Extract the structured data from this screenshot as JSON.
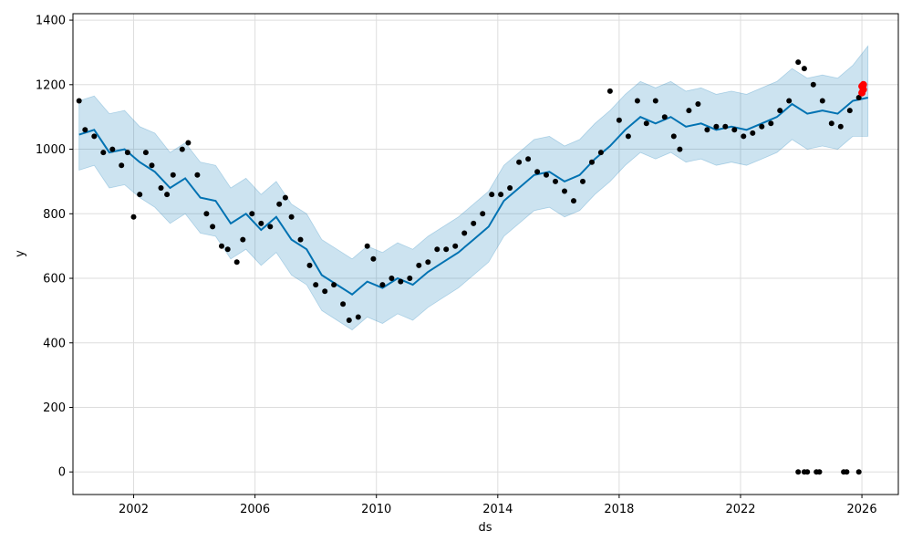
{
  "colors": {
    "observed": "#000000",
    "forecast_line": "#0072B2",
    "uncertainty_band": "#0072B2",
    "highlight": "#ff0000",
    "grid": "#dddddd"
  },
  "chart_data": {
    "type": "line",
    "title": "",
    "xlabel": "ds",
    "ylabel": "y",
    "xlim": [
      2000.0,
      2027.2
    ],
    "ylim": [
      -70,
      1420
    ],
    "grid": true,
    "x_ticks": [
      2002,
      2006,
      2010,
      2014,
      2018,
      2022,
      2026
    ],
    "x_tick_labels": [
      "2002",
      "2006",
      "2010",
      "2014",
      "2018",
      "2022",
      "2026"
    ],
    "y_ticks": [
      0,
      200,
      400,
      600,
      800,
      1000,
      1200,
      1400
    ],
    "y_tick_labels": [
      "0",
      "200",
      "400",
      "600",
      "800",
      "1000",
      "1200",
      "1400"
    ],
    "series": [
      {
        "role": "observed-points",
        "style": "scatter",
        "color": "#000000",
        "x": [
          2000.2,
          2000.4,
          2000.7,
          2001.0,
          2001.3,
          2001.6,
          2001.8,
          2002.0,
          2002.2,
          2002.4,
          2002.6,
          2002.9,
          2003.1,
          2003.3,
          2003.6,
          2003.8,
          2004.1,
          2004.4,
          2004.6,
          2004.9,
          2005.1,
          2005.4,
          2005.6,
          2005.9,
          2006.2,
          2006.5,
          2006.8,
          2007.0,
          2007.2,
          2007.5,
          2007.8,
          2008.0,
          2008.3,
          2008.6,
          2008.9,
          2009.1,
          2009.4,
          2009.7,
          2009.9,
          2010.2,
          2010.5,
          2010.8,
          2011.1,
          2011.4,
          2011.7,
          2012.0,
          2012.3,
          2012.6,
          2012.9,
          2013.2,
          2013.5,
          2013.8,
          2014.1,
          2014.4,
          2014.7,
          2015.0,
          2015.3,
          2015.6,
          2015.9,
          2016.2,
          2016.5,
          2016.8,
          2017.1,
          2017.4,
          2017.7,
          2018.0,
          2018.3,
          2018.6,
          2018.9,
          2019.2,
          2019.5,
          2019.8,
          2020.0,
          2020.3,
          2020.6,
          2020.9,
          2021.2,
          2021.5,
          2021.8,
          2022.1,
          2022.4,
          2022.7,
          2023.0,
          2023.3,
          2023.6,
          2023.9,
          2024.1,
          2024.4,
          2024.7,
          2025.0,
          2025.3,
          2025.6,
          2025.9
        ],
        "y": [
          1150,
          1060,
          1040,
          990,
          1000,
          950,
          990,
          790,
          860,
          990,
          950,
          880,
          860,
          920,
          1000,
          1020,
          920,
          800,
          760,
          700,
          690,
          650,
          720,
          800,
          770,
          760,
          830,
          850,
          790,
          720,
          640,
          580,
          560,
          580,
          520,
          470,
          480,
          700,
          660,
          580,
          600,
          590,
          600,
          640,
          650,
          690,
          690,
          700,
          740,
          770,
          800,
          860,
          860,
          880,
          960,
          970,
          930,
          920,
          900,
          870,
          840,
          900,
          960,
          990,
          1180,
          1090,
          1040,
          1150,
          1080,
          1150,
          1100,
          1040,
          1000,
          1120,
          1140,
          1060,
          1070,
          1070,
          1060,
          1040,
          1050,
          1070,
          1080,
          1120,
          1150,
          1270,
          1250,
          1200,
          1150,
          1080,
          1070,
          1120,
          1160
        ]
      },
      {
        "role": "outlier-zero-points",
        "style": "scatter",
        "color": "#000000",
        "x": [
          2023.9,
          2024.1,
          2024.2,
          2024.5,
          2024.6,
          2025.4,
          2025.5,
          2025.9
        ],
        "y": [
          0,
          0,
          0,
          0,
          0,
          0,
          0,
          0
        ]
      },
      {
        "role": "forecast",
        "style": "line",
        "color": "#0072B2",
        "x": [
          2000.2,
          2000.7,
          2001.2,
          2001.7,
          2002.2,
          2002.7,
          2003.2,
          2003.7,
          2004.2,
          2004.7,
          2005.2,
          2005.7,
          2006.2,
          2006.7,
          2007.2,
          2007.7,
          2008.2,
          2008.7,
          2009.2,
          2009.7,
          2010.2,
          2010.7,
          2011.2,
          2011.7,
          2012.2,
          2012.7,
          2013.2,
          2013.7,
          2014.2,
          2014.7,
          2015.2,
          2015.7,
          2016.2,
          2016.7,
          2017.2,
          2017.7,
          2018.2,
          2018.7,
          2019.2,
          2019.7,
          2020.2,
          2020.7,
          2021.2,
          2021.7,
          2022.2,
          2022.7,
          2023.2,
          2023.7,
          2024.2,
          2024.7,
          2025.2,
          2025.7,
          2026.2
        ],
        "y": [
          1045,
          1060,
          990,
          1000,
          960,
          930,
          880,
          910,
          850,
          840,
          770,
          800,
          750,
          790,
          720,
          690,
          610,
          580,
          550,
          590,
          570,
          600,
          580,
          620,
          650,
          680,
          720,
          760,
          840,
          880,
          920,
          930,
          900,
          920,
          970,
          1010,
          1060,
          1100,
          1080,
          1100,
          1070,
          1080,
          1060,
          1070,
          1060,
          1080,
          1100,
          1140,
          1110,
          1120,
          1110,
          1150,
          1160
        ]
      },
      {
        "role": "uncertainty-upper",
        "style": "band-edge",
        "color": "#0072B2",
        "x": [
          2000.2,
          2000.7,
          2001.2,
          2001.7,
          2002.2,
          2002.7,
          2003.2,
          2003.7,
          2004.2,
          2004.7,
          2005.2,
          2005.7,
          2006.2,
          2006.7,
          2007.2,
          2007.7,
          2008.2,
          2008.7,
          2009.2,
          2009.7,
          2010.2,
          2010.7,
          2011.2,
          2011.7,
          2012.2,
          2012.7,
          2013.2,
          2013.7,
          2014.2,
          2014.7,
          2015.2,
          2015.7,
          2016.2,
          2016.7,
          2017.2,
          2017.7,
          2018.2,
          2018.7,
          2019.2,
          2019.7,
          2020.2,
          2020.7,
          2021.2,
          2021.7,
          2022.2,
          2022.7,
          2023.2,
          2023.7,
          2024.2,
          2024.7,
          2025.2,
          2025.7,
          2026.2
        ],
        "y": [
          1150,
          1165,
          1110,
          1120,
          1070,
          1050,
          990,
          1020,
          960,
          950,
          880,
          910,
          860,
          900,
          830,
          800,
          720,
          690,
          660,
          700,
          680,
          710,
          690,
          730,
          760,
          790,
          830,
          870,
          950,
          990,
          1030,
          1040,
          1010,
          1030,
          1080,
          1120,
          1170,
          1210,
          1190,
          1210,
          1180,
          1190,
          1170,
          1180,
          1170,
          1190,
          1210,
          1250,
          1220,
          1230,
          1220,
          1260,
          1320
        ]
      },
      {
        "role": "uncertainty-lower",
        "style": "band-edge",
        "color": "#0072B2",
        "x": [
          2000.2,
          2000.7,
          2001.2,
          2001.7,
          2002.2,
          2002.7,
          2003.2,
          2003.7,
          2004.2,
          2004.7,
          2005.2,
          2005.7,
          2006.2,
          2006.7,
          2007.2,
          2007.7,
          2008.2,
          2008.7,
          2009.2,
          2009.7,
          2010.2,
          2010.7,
          2011.2,
          2011.7,
          2012.2,
          2012.7,
          2013.2,
          2013.7,
          2014.2,
          2014.7,
          2015.2,
          2015.7,
          2016.2,
          2016.7,
          2017.2,
          2017.7,
          2018.2,
          2018.7,
          2019.2,
          2019.7,
          2020.2,
          2020.7,
          2021.2,
          2021.7,
          2022.2,
          2022.7,
          2023.2,
          2023.7,
          2024.2,
          2024.7,
          2025.2,
          2025.7,
          2026.2
        ],
        "y": [
          935,
          950,
          880,
          890,
          850,
          820,
          770,
          800,
          740,
          730,
          660,
          690,
          640,
          680,
          610,
          580,
          500,
          470,
          440,
          480,
          460,
          490,
          470,
          510,
          540,
          570,
          610,
          650,
          730,
          770,
          810,
          820,
          790,
          810,
          860,
          900,
          950,
          990,
          970,
          990,
          960,
          970,
          950,
          960,
          950,
          970,
          990,
          1030,
          1000,
          1010,
          1000,
          1040,
          1040
        ]
      },
      {
        "role": "recent-highlight",
        "style": "scatter",
        "color": "#ff0000",
        "x": [
          2026.0,
          2026.0,
          2026.05,
          2026.05
        ],
        "y": [
          1175,
          1195,
          1185,
          1200
        ]
      }
    ]
  }
}
